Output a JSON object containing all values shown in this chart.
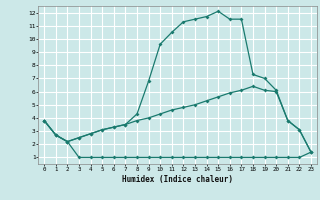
{
  "title": "",
  "xlabel": "Humidex (Indice chaleur)",
  "ylabel": "",
  "bg_color": "#cce8e8",
  "grid_color": "#ffffff",
  "line_color": "#1a7a6e",
  "xlim": [
    -0.5,
    23.5
  ],
  "ylim": [
    0.5,
    12.5
  ],
  "xticks": [
    0,
    1,
    2,
    3,
    4,
    5,
    6,
    7,
    8,
    9,
    10,
    11,
    12,
    13,
    14,
    15,
    16,
    17,
    18,
    19,
    20,
    21,
    22,
    23
  ],
  "yticks": [
    1,
    2,
    3,
    4,
    5,
    6,
    7,
    8,
    9,
    10,
    11,
    12
  ],
  "line1_x": [
    0,
    1,
    2,
    3,
    4,
    5,
    6,
    7,
    8,
    9,
    10,
    11,
    12,
    13,
    14,
    15,
    16,
    17,
    18,
    19,
    20,
    21,
    22,
    23
  ],
  "line1_y": [
    3.8,
    2.7,
    2.2,
    1.0,
    1.0,
    1.0,
    1.0,
    1.0,
    1.0,
    1.0,
    1.0,
    1.0,
    1.0,
    1.0,
    1.0,
    1.0,
    1.0,
    1.0,
    1.0,
    1.0,
    1.0,
    1.0,
    1.0,
    1.4
  ],
  "line2_x": [
    0,
    1,
    2,
    3,
    4,
    5,
    6,
    7,
    8,
    9,
    10,
    11,
    12,
    13,
    14,
    15,
    16,
    17,
    18,
    19,
    20,
    21,
    22,
    23
  ],
  "line2_y": [
    3.8,
    2.7,
    2.2,
    2.5,
    2.8,
    3.1,
    3.3,
    3.5,
    3.8,
    4.0,
    4.3,
    4.6,
    4.8,
    5.0,
    5.3,
    5.6,
    5.9,
    6.1,
    6.4,
    6.1,
    6.0,
    3.8,
    3.1,
    1.4
  ],
  "line3_x": [
    0,
    1,
    2,
    3,
    4,
    5,
    6,
    7,
    8,
    9,
    10,
    11,
    12,
    13,
    14,
    15,
    16,
    17,
    18,
    19,
    20,
    21,
    22,
    23
  ],
  "line3_y": [
    3.8,
    2.7,
    2.2,
    2.5,
    2.8,
    3.1,
    3.3,
    3.5,
    4.3,
    6.8,
    9.6,
    10.5,
    11.3,
    11.5,
    11.7,
    12.1,
    11.5,
    11.5,
    7.3,
    7.0,
    6.1,
    3.8,
    3.1,
    1.4
  ]
}
